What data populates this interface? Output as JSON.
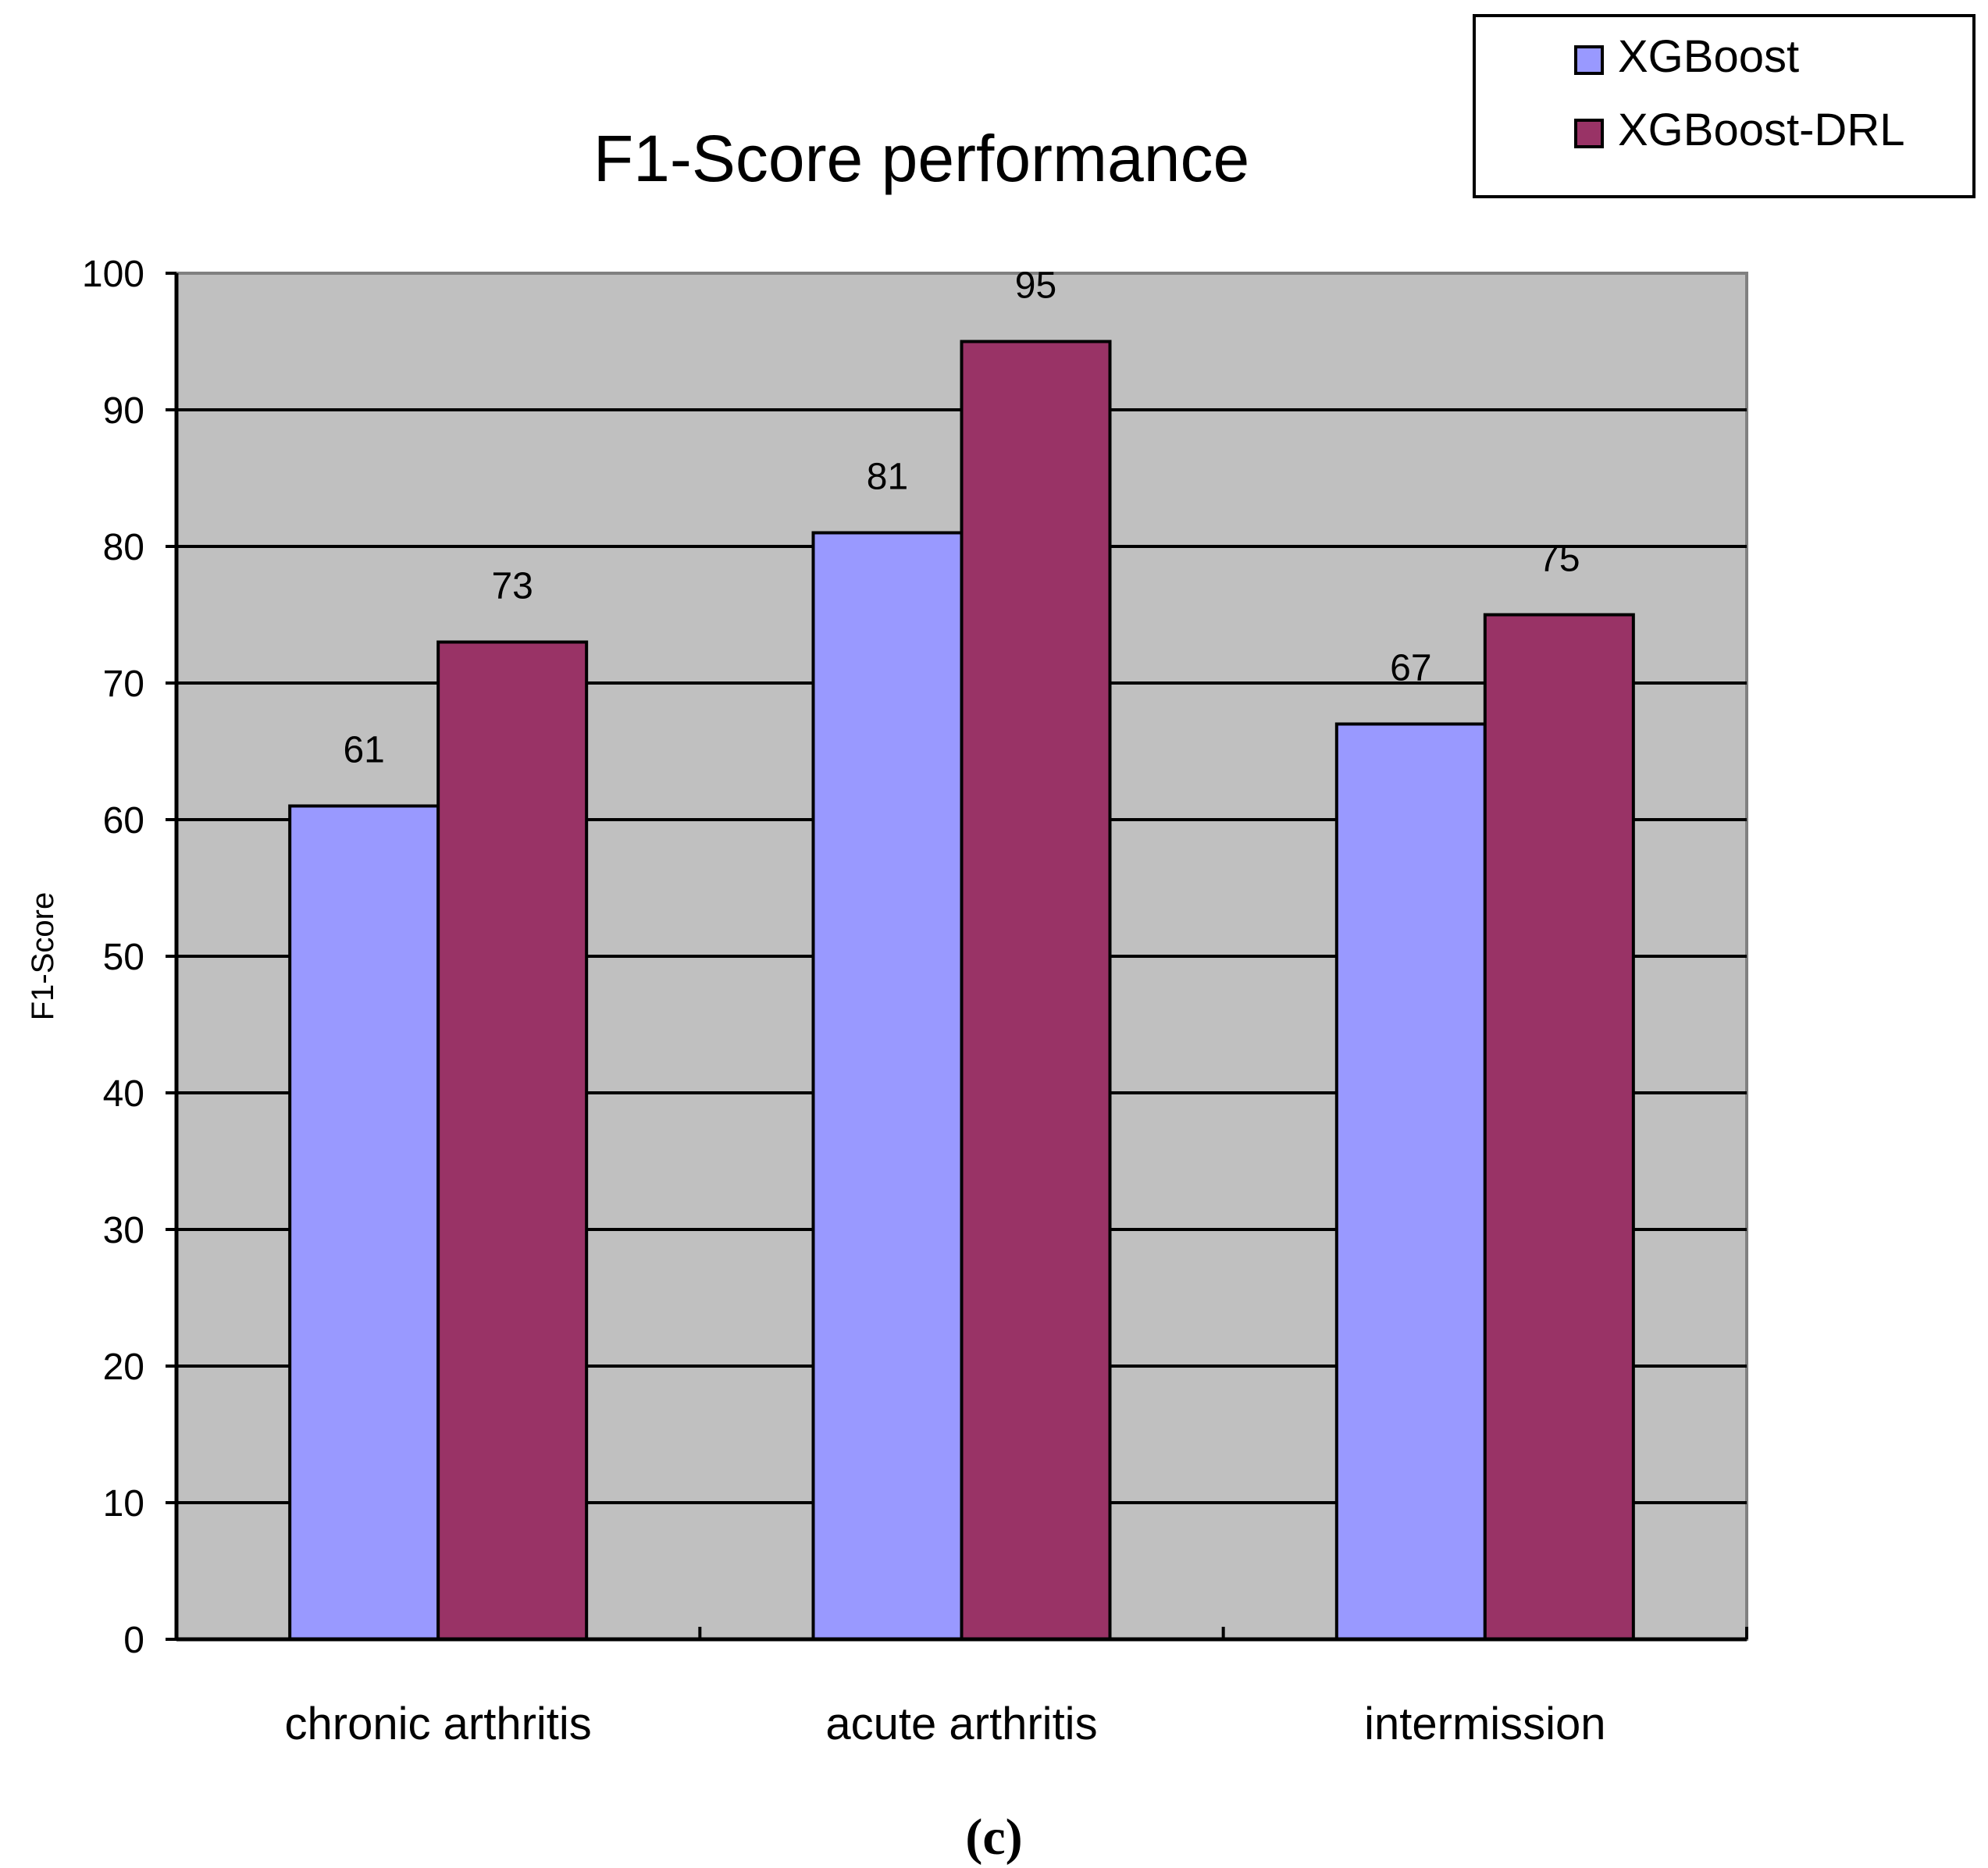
{
  "chart_data": {
    "type": "bar",
    "title": "F1-Score performance",
    "ylabel": "F1-Score",
    "xlabel": "",
    "categories": [
      "chronic arthritis",
      "acute arthritis",
      "intermission"
    ],
    "series": [
      {
        "name": "XGBoost",
        "values": [
          61,
          81,
          67
        ],
        "color": "#9999ff"
      },
      {
        "name": "XGBoost-DRL",
        "values": [
          73,
          95,
          75
        ],
        "color": "#993366"
      }
    ],
    "ylim": [
      0,
      100
    ],
    "yticks": [
      0,
      10,
      20,
      30,
      40,
      50,
      60,
      70,
      80,
      90,
      100
    ],
    "grid": true,
    "plot_background": "#c0c0c0",
    "legend_position": "top-right",
    "data_labels": true
  },
  "panel_label": "(c)"
}
